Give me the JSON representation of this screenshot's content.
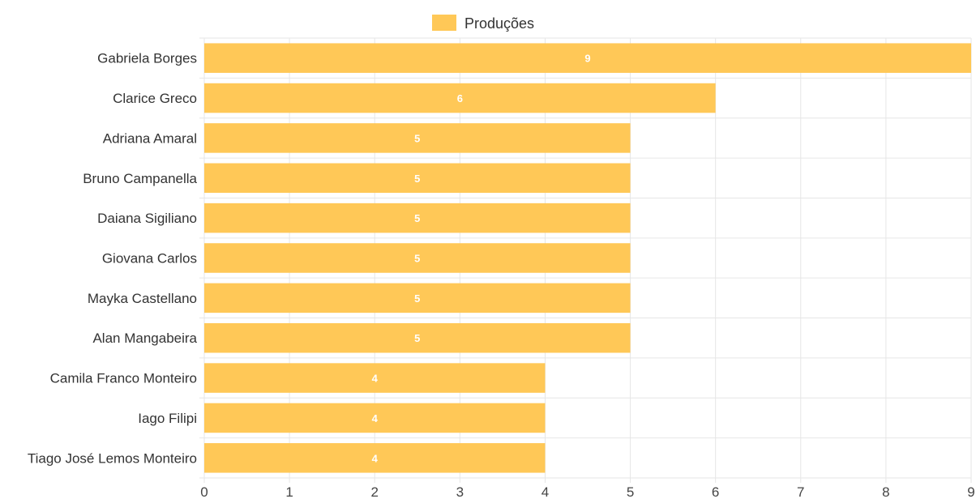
{
  "chart_data": {
    "type": "bar",
    "orientation": "horizontal",
    "categories": [
      "Gabriela Borges",
      "Clarice Greco",
      "Adriana Amaral",
      "Bruno Campanella",
      "Daiana Sigiliano",
      "Giovana Carlos",
      "Mayka Castellano",
      "Alan Mangabeira",
      "Camila Franco Monteiro",
      "Iago Filipi",
      "Tiago José Lemos Monteiro"
    ],
    "series": [
      {
        "name": "Produções",
        "values": [
          9,
          6,
          5,
          5,
          5,
          5,
          5,
          5,
          4,
          4,
          4
        ]
      }
    ],
    "data_labels": [
      "9",
      "6",
      "5",
      "5",
      "5",
      "5",
      "5",
      "5",
      "4",
      "4",
      "4"
    ],
    "xticks": [
      "0",
      "1",
      "2",
      "3",
      "4",
      "5",
      "6",
      "7",
      "8",
      "9"
    ],
    "xlim": [
      0,
      9
    ],
    "grid": true,
    "legend": "top-center",
    "colors": {
      "bar": "#FFC857",
      "grid": "#E6E6E6",
      "data_label": "#FFFFFF"
    }
  }
}
